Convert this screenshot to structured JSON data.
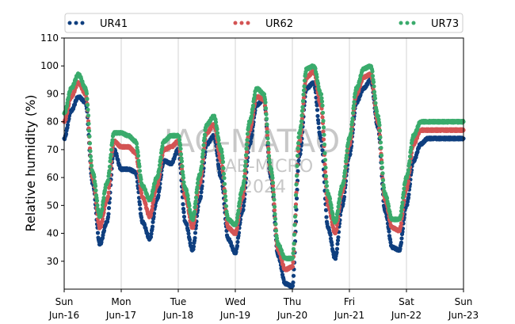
{
  "chart_data": {
    "type": "scatter",
    "ylabel": "Relative humidity (%)",
    "ylim": [
      20,
      110
    ],
    "yticks": [
      30,
      40,
      50,
      60,
      70,
      80,
      90,
      100,
      110
    ],
    "xlim": [
      "2024-06-16",
      "2024-06-23"
    ],
    "xticks": [
      {
        "date": "2024-06-16",
        "day": "Sun",
        "date_label": "Jun-16"
      },
      {
        "date": "2024-06-17",
        "day": "Mon",
        "date_label": "Jun-17"
      },
      {
        "date": "2024-06-18",
        "day": "Tue",
        "date_label": "Jun-18"
      },
      {
        "date": "2024-06-19",
        "day": "Wed",
        "date_label": "Jun-19"
      },
      {
        "date": "2024-06-20",
        "day": "Thu",
        "date_label": "Jun-20"
      },
      {
        "date": "2024-06-21",
        "day": "Fri",
        "date_label": "Jun-21"
      },
      {
        "date": "2024-06-22",
        "day": "Sat",
        "date_label": "Jun-22"
      },
      {
        "date": "2024-06-23",
        "day": "Sun",
        "date_label": "Jun-23"
      }
    ],
    "grid": "vertical",
    "legend": "top",
    "watermark": [
      "IAG-MATAO",
      "LAB-MICRO",
      "2024"
    ],
    "x": [
      "2024-06-16 00:00",
      "2024-06-16 03:00",
      "2024-06-16 06:00",
      "2024-06-16 09:00",
      "2024-06-16 12:00",
      "2024-06-16 15:00",
      "2024-06-16 18:00",
      "2024-06-16 21:00",
      "2024-06-17 00:00",
      "2024-06-17 03:00",
      "2024-06-17 06:00",
      "2024-06-17 09:00",
      "2024-06-17 12:00",
      "2024-06-17 15:00",
      "2024-06-17 18:00",
      "2024-06-17 21:00",
      "2024-06-18 00:00",
      "2024-06-18 03:00",
      "2024-06-18 06:00",
      "2024-06-18 09:00",
      "2024-06-18 12:00",
      "2024-06-18 15:00",
      "2024-06-18 18:00",
      "2024-06-18 21:00",
      "2024-06-19 00:00",
      "2024-06-19 03:00",
      "2024-06-19 06:00",
      "2024-06-19 09:00",
      "2024-06-19 12:00",
      "2024-06-19 15:00",
      "2024-06-19 18:00",
      "2024-06-19 21:00",
      "2024-06-20 00:00",
      "2024-06-20 03:00",
      "2024-06-20 06:00",
      "2024-06-20 09:00",
      "2024-06-20 12:00",
      "2024-06-20 15:00",
      "2024-06-20 18:00",
      "2024-06-20 21:00",
      "2024-06-21 00:00",
      "2024-06-21 03:00",
      "2024-06-21 06:00",
      "2024-06-21 09:00",
      "2024-06-21 12:00",
      "2024-06-21 15:00",
      "2024-06-21 18:00",
      "2024-06-21 21:00",
      "2024-06-22 00:00",
      "2024-06-22 03:00",
      "2024-06-22 06:00",
      "2024-06-22 09:00",
      "2024-06-22 12:00",
      "2024-06-22 15:00",
      "2024-06-22 18:00",
      "2024-06-22 21:00",
      "2024-06-23 00:00"
    ],
    "series": [
      {
        "name": "UR41",
        "color": "#0f3f7f",
        "values": [
          74,
          84,
          89,
          87,
          58,
          36,
          44,
          70,
          63,
          63,
          62,
          44,
          38,
          52,
          66,
          65,
          70,
          44,
          34,
          52,
          72,
          75,
          60,
          38,
          33,
          48,
          72,
          86,
          88,
          60,
          32,
          22,
          21,
          68,
          92,
          94,
          74,
          42,
          31,
          50,
          68,
          87,
          92,
          95,
          78,
          48,
          35,
          34,
          50,
          66,
          72,
          74,
          74,
          74,
          74,
          74,
          74
        ]
      },
      {
        "name": "UR62",
        "color": "#d35454",
        "values": [
          80,
          89,
          94,
          90,
          60,
          42,
          52,
          73,
          71,
          71,
          69,
          53,
          46,
          57,
          70,
          71,
          73,
          53,
          42,
          58,
          76,
          79,
          66,
          42,
          40,
          53,
          77,
          89,
          88,
          62,
          34,
          27,
          28,
          73,
          96,
          98,
          86,
          50,
          40,
          55,
          72,
          90,
          96,
          97,
          80,
          52,
          42,
          41,
          56,
          72,
          77,
          77,
          77,
          77,
          77,
          77,
          77
        ]
      },
      {
        "name": "UR73",
        "color": "#3aab6c",
        "values": [
          83,
          92,
          97,
          92,
          62,
          46,
          58,
          76,
          76,
          75,
          73,
          57,
          52,
          60,
          73,
          75,
          75,
          56,
          45,
          61,
          79,
          82,
          70,
          45,
          43,
          56,
          80,
          92,
          90,
          63,
          36,
          31,
          31,
          76,
          99,
          100,
          90,
          54,
          44,
          57,
          74,
          92,
          99,
          100,
          82,
          54,
          45,
          45,
          60,
          75,
          80,
          80,
          80,
          80,
          80,
          80,
          80
        ]
      }
    ]
  }
}
